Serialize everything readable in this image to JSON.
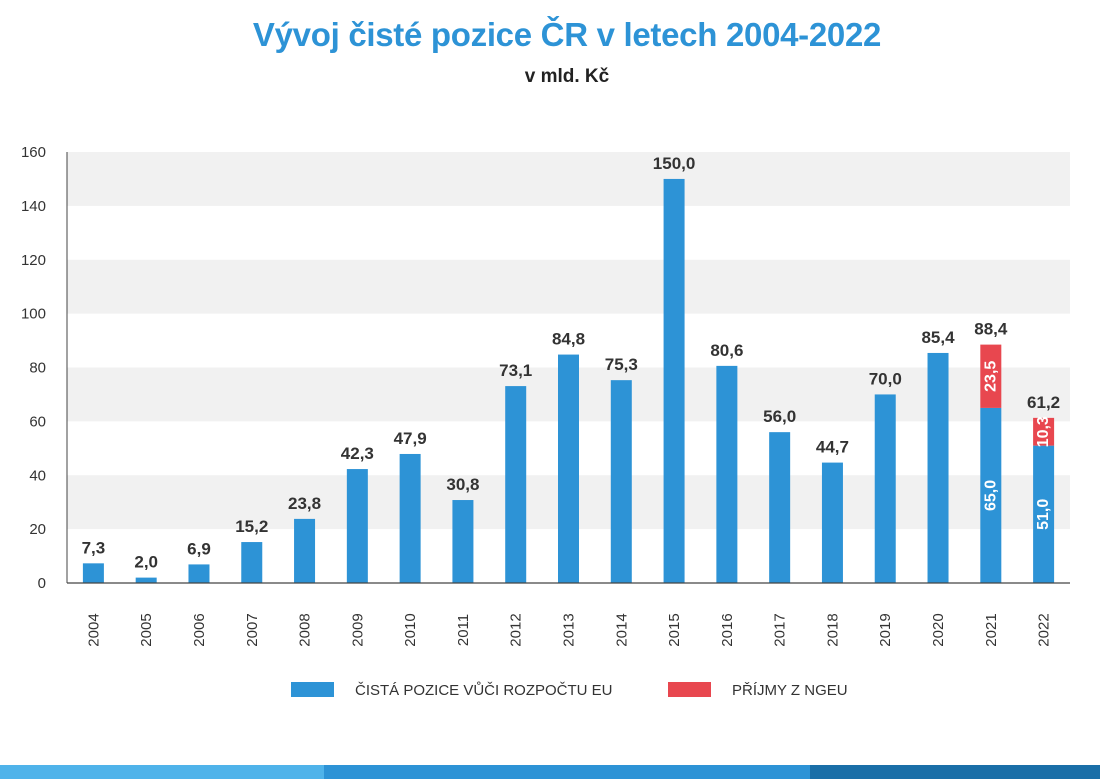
{
  "chart_data": {
    "type": "bar",
    "title": "Vývoj čisté pozice ČR v letech 2004-2022",
    "subtitle": "v mld. Kč",
    "categories": [
      "2004",
      "2005",
      "2006",
      "2007",
      "2008",
      "2009",
      "2010",
      "2011",
      "2012",
      "2013",
      "2014",
      "2015",
      "2016",
      "2017",
      "2018",
      "2019",
      "2020",
      "2021",
      "2022"
    ],
    "series": [
      {
        "name": "ČISTÁ POZICE VŮČI ROZPOČTU EU",
        "color": "#2d93d6",
        "values": [
          7.3,
          2.0,
          6.9,
          15.2,
          23.8,
          42.3,
          47.9,
          30.8,
          73.1,
          84.8,
          75.3,
          150.0,
          80.6,
          56.0,
          44.7,
          70.0,
          85.4,
          65.0,
          51.0
        ]
      },
      {
        "name": "PŘÍJMY Z NGEU",
        "color": "#e8474f",
        "values": [
          0,
          0,
          0,
          0,
          0,
          0,
          0,
          0,
          0,
          0,
          0,
          0,
          0,
          0,
          0,
          0,
          0,
          23.5,
          10.3
        ]
      }
    ],
    "totals": [
      "7,3",
      "2,0",
      "6,9",
      "15,2",
      "23,8",
      "42,3",
      "47,9",
      "30,8",
      "73,1",
      "84,8",
      "75,3",
      "150,0",
      "80,6",
      "56,0",
      "44,7",
      "70,0",
      "85,4",
      "88,4",
      "61,2"
    ],
    "segment_labels": {
      "2021": [
        "65,0",
        "23,5"
      ],
      "2022": [
        "51,0",
        "10,3"
      ]
    },
    "ylim": [
      0,
      160
    ],
    "yticks": [
      0,
      20,
      40,
      60,
      80,
      100,
      120,
      140,
      160
    ],
    "grid": "alternating horizontal bands",
    "legend_position": "bottom"
  },
  "footer_colors": [
    "#4fb3ea",
    "#2d93d6",
    "#1a6fa8"
  ]
}
